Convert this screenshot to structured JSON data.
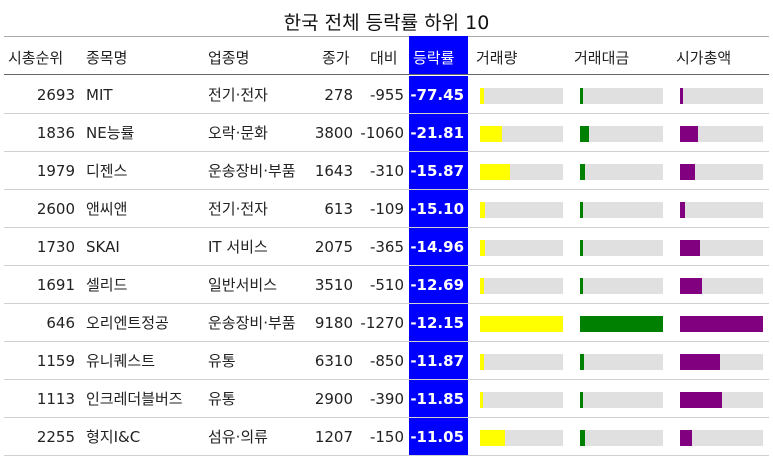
{
  "chart_data": {
    "type": "table",
    "title": "한국 전체 등락률 하위 10",
    "columns": [
      "시총순위",
      "종목명",
      "업종명",
      "종가",
      "대비",
      "등락률",
      "거래량",
      "거래대금",
      "시가총액"
    ],
    "bar_colors": {
      "volume": "#ffff00",
      "amount": "#008000",
      "marketcap": "#800080"
    },
    "highlight_color": "#0000ff",
    "rows": [
      {
        "rank": "2693",
        "name": "MIT",
        "sector": "전기·전자",
        "close": "278",
        "diff": "-955",
        "change": "-77.45",
        "volume_frac": 0.05,
        "amount_frac": 0.01,
        "marketcap_frac": 0.03
      },
      {
        "rank": "1836",
        "name": "NE능률",
        "sector": "오락·문화",
        "close": "3800",
        "diff": "-1060",
        "change": "-21.81",
        "volume_frac": 0.26,
        "amount_frac": 0.11,
        "marketcap_frac": 0.22
      },
      {
        "rank": "1979",
        "name": "디젠스",
        "sector": "운송장비·부품",
        "close": "1643",
        "diff": "-310",
        "change": "-15.87",
        "volume_frac": 0.36,
        "amount_frac": 0.06,
        "marketcap_frac": 0.18
      },
      {
        "rank": "2600",
        "name": "앤씨앤",
        "sector": "전기·전자",
        "close": "613",
        "diff": "-109",
        "change": "-15.10",
        "volume_frac": 0.06,
        "amount_frac": 0.01,
        "marketcap_frac": 0.06
      },
      {
        "rank": "1730",
        "name": "SKAI",
        "sector": "IT 서비스",
        "close": "2075",
        "diff": "-365",
        "change": "-14.96",
        "volume_frac": 0.06,
        "amount_frac": 0.01,
        "marketcap_frac": 0.24
      },
      {
        "rank": "1691",
        "name": "셀리드",
        "sector": "일반서비스",
        "close": "3510",
        "diff": "-510",
        "change": "-12.69",
        "volume_frac": 0.05,
        "amount_frac": 0.02,
        "marketcap_frac": 0.26
      },
      {
        "rank": "646",
        "name": "오리엔트정공",
        "sector": "운송장비·부품",
        "close": "9180",
        "diff": "-1270",
        "change": "-12.15",
        "volume_frac": 1.0,
        "amount_frac": 1.0,
        "marketcap_frac": 1.0
      },
      {
        "rank": "1159",
        "name": "유니퀘스트",
        "sector": "유통",
        "close": "6310",
        "diff": "-850",
        "change": "-11.87",
        "volume_frac": 0.05,
        "amount_frac": 0.05,
        "marketcap_frac": 0.48
      },
      {
        "rank": "1113",
        "name": "인크레더블버즈",
        "sector": "유통",
        "close": "2900",
        "diff": "-390",
        "change": "-11.85",
        "volume_frac": 0.02,
        "amount_frac": 0.01,
        "marketcap_frac": 0.5
      },
      {
        "rank": "2255",
        "name": "형지I&C",
        "sector": "섬유·의류",
        "close": "1207",
        "diff": "-150",
        "change": "-11.05",
        "volume_frac": 0.3,
        "amount_frac": 0.06,
        "marketcap_frac": 0.14
      }
    ]
  }
}
